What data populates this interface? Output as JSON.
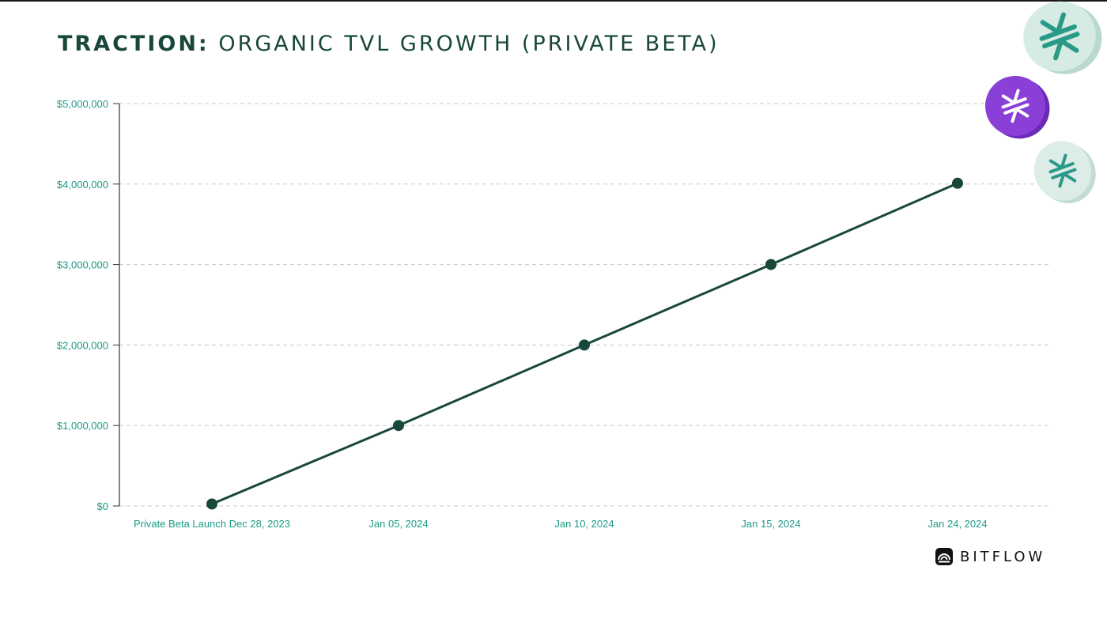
{
  "title": {
    "bold": "TRACTION:",
    "rest": " ORGANIC TVL GROWTH (PRIVATE BETA)"
  },
  "brand": {
    "name": "BITFLOW",
    "icon": "bitflow-logo-icon"
  },
  "decor": {
    "coins": [
      "stacks-coin-icon-mint",
      "stacks-coin-icon-purple",
      "stacks-coin-icon-mint-small"
    ],
    "colors": {
      "mint": "#d5ebe3",
      "mint_mark": "#2a9a88",
      "purple": "#8a3fd6"
    }
  },
  "colors": {
    "line": "#18473c",
    "axis_text": "#1a9a85",
    "grid": "#c8c8c8",
    "title": "#18473c"
  },
  "chart_data": {
    "type": "line",
    "title": "",
    "xlabel": "",
    "ylabel": "",
    "categories": [
      "Private Beta Launch Dec 28, 2023",
      "Jan 05, 2024",
      "Jan 10, 2024",
      "Jan 15, 2024",
      "Jan 24, 2024"
    ],
    "values": [
      25000,
      1000000,
      2000000,
      3000000,
      4010000
    ],
    "ylim": [
      0,
      5000000
    ],
    "yticks": [
      0,
      1000000,
      2000000,
      3000000,
      4000000,
      5000000
    ],
    "ytick_labels": [
      "$0",
      "$1,000,000",
      "$2,000,000",
      "$3,000,000",
      "$4,000,000",
      "$5,000,000"
    ],
    "grid": "horizontal dashed",
    "legend": "none"
  }
}
